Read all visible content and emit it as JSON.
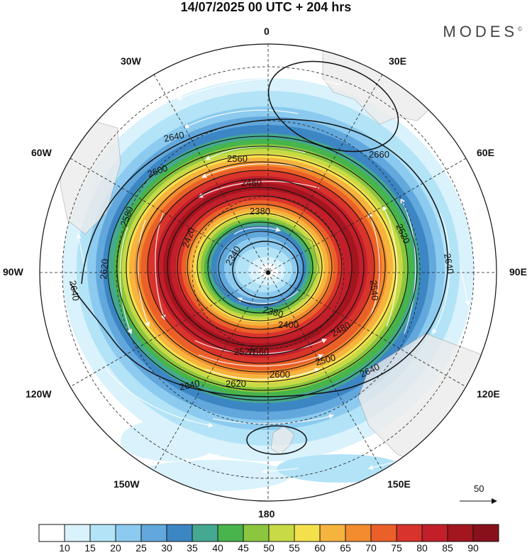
{
  "title": "14/07/2025  00 UTC  + 204 hrs",
  "brand": "MODES",
  "brand_mark": "©",
  "graticule_labels": {
    "lon_0": "0",
    "lon_30e": "30E",
    "lon_60e": "60E",
    "lon_90e": "90E",
    "lon_120e": "120E",
    "lon_150e": "150E",
    "lon_180": "180",
    "lon_150w": "150W",
    "lon_120w": "120W",
    "lon_90w": "90W",
    "lon_60w": "60W",
    "lon_30w": "30W"
  },
  "contour_labels": {
    "c2640_a": "2640",
    "c2660": "2660",
    "c2560": "2560",
    "c2600": "2600",
    "c2460": "2460",
    "c2520_r": "2520",
    "c2580_l": "2580",
    "c2380_t": "2380",
    "c2340": "2340",
    "c2420": "2420",
    "c2620_l": "2620",
    "c2640_l": "2640",
    "c2640_r": "2640",
    "c2540": "2540",
    "c2480": "2480",
    "c2400": "2400",
    "c2380_b": "2380",
    "c2500": "2500",
    "c2600_b": "2600",
    "c2620_b": "2620",
    "c2640_b": "2640",
    "c2560_b": "2560",
    "c2520_b": "2520"
  },
  "vector_scale": {
    "label": "50"
  },
  "colorbar": {
    "labels": [
      "10",
      "15",
      "20",
      "25",
      "30",
      "35",
      "40",
      "45",
      "50",
      "55",
      "60",
      "65",
      "70",
      "75",
      "80",
      "85",
      "90"
    ],
    "colors": [
      "#ffffff",
      "#d9f2fc",
      "#b3e3f7",
      "#8ccbef",
      "#62a8dc",
      "#3d86c4",
      "#45a890",
      "#47b44c",
      "#8cc63f",
      "#c8da45",
      "#f4e04d",
      "#f6b33e",
      "#f28c2e",
      "#eb6028",
      "#d9342b",
      "#c21f2a",
      "#a3151f",
      "#87101a"
    ]
  }
}
